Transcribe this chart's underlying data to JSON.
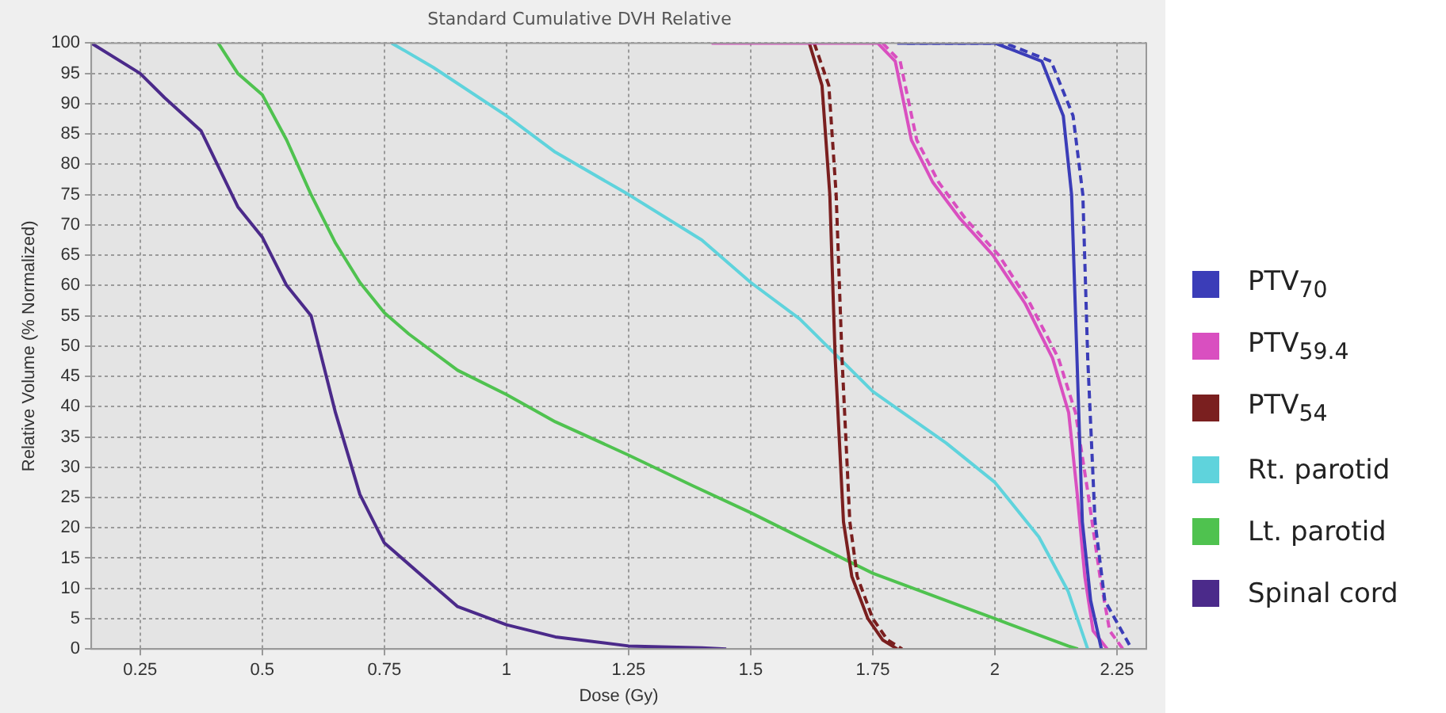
{
  "chart_data": {
    "type": "line",
    "title": "Standard Cumulative DVH Relative",
    "xlabel": "Dose (Gy)",
    "ylabel": "Relative Volume (% Normalized)",
    "xlim": [
      0.15,
      2.31
    ],
    "xticks": [
      0.25,
      0.5,
      0.75,
      1,
      1.25,
      1.5,
      1.75,
      2,
      2.25
    ],
    "ylim": [
      0,
      100
    ],
    "yticks": [
      0,
      5,
      10,
      15,
      20,
      25,
      30,
      35,
      40,
      45,
      50,
      55,
      60,
      65,
      70,
      75,
      80,
      85,
      90,
      95,
      100
    ],
    "grid": true,
    "legend": "right",
    "marker": "none",
    "line_style": "solid",
    "series": [
      {
        "name": "PTV$_{70}$",
        "color": "#3b3db8",
        "x": [
          1.8,
          2.0,
          2.096,
          2.14,
          2.157,
          2.168,
          2.179,
          2.196,
          2.218
        ],
        "values": [
          100,
          100,
          97,
          88,
          75,
          48,
          21,
          8,
          0
        ]
      },
      {
        "color": "#3b3db8",
        "line_style": "dashed",
        "x": [
          1.82,
          2.02,
          2.115,
          2.16,
          2.18,
          2.19,
          2.205,
          2.225,
          2.28
        ],
        "values": [
          100,
          100,
          97,
          88,
          75,
          48,
          21,
          8,
          0
        ]
      },
      {
        "name": "PTV$_{59.4}$",
        "color": "#d94fc0",
        "x": [
          1.42,
          1.76,
          1.796,
          1.829,
          1.873,
          1.929,
          1.996,
          2.062,
          2.118,
          2.151,
          2.168,
          2.184,
          2.201,
          2.23
        ],
        "values": [
          100,
          100,
          97,
          84,
          77,
          71,
          65,
          57,
          48,
          39,
          26,
          12,
          3,
          0
        ]
      },
      {
        "color": "#d94fc0",
        "line_style": "dashed",
        "x": [
          1.77,
          1.806,
          1.84,
          1.885,
          1.94,
          2.008,
          2.072,
          2.13,
          2.165,
          2.19,
          2.215,
          2.235,
          2.262
        ],
        "values": [
          100,
          97,
          84,
          77,
          71,
          65,
          57,
          48,
          39,
          26,
          12,
          3,
          0
        ]
      },
      {
        "name": "PTV$_{54}$",
        "color": "#7a1f1f",
        "x": [
          1.62,
          1.646,
          1.662,
          1.673,
          1.69,
          1.707,
          1.74,
          1.77,
          1.8
        ],
        "values": [
          100,
          93,
          75,
          48,
          21,
          12,
          5,
          1.5,
          0
        ]
      },
      {
        "color": "#7a1f1f",
        "line_style": "dashed",
        "x": [
          1.63,
          1.66,
          1.675,
          1.687,
          1.703,
          1.718,
          1.75,
          1.78,
          1.81
        ],
        "values": [
          100,
          93,
          75,
          48,
          21,
          12,
          5,
          1.5,
          0
        ]
      },
      {
        "name": "Rt. parotid",
        "color": "#5fd3dc",
        "x": [
          0.765,
          0.85,
          1.0,
          1.1,
          1.25,
          1.4,
          1.5,
          1.6,
          1.75,
          1.9,
          2.0,
          2.09,
          2.15,
          2.19
        ],
        "values": [
          100,
          96,
          88,
          82,
          75,
          67.5,
          60.5,
          54.5,
          42.5,
          34,
          27.5,
          18.5,
          9.5,
          0
        ]
      },
      {
        "name": "Lt. parotid",
        "color": "#4fc24f",
        "x": [
          0.41,
          0.45,
          0.5,
          0.55,
          0.6,
          0.65,
          0.7,
          0.75,
          0.8,
          0.9,
          1.0,
          1.1,
          1.25,
          1.38,
          1.5,
          1.75,
          2.0,
          2.15,
          2.17
        ],
        "values": [
          100,
          95,
          91.5,
          84,
          75,
          67,
          60.5,
          55.5,
          52,
          46,
          42,
          37.5,
          32,
          27,
          22.5,
          12.5,
          5,
          0.5,
          0
        ]
      },
      {
        "name": "Spinal cord",
        "color": "#4b2a8a",
        "x": [
          0.15,
          0.25,
          0.3,
          0.375,
          0.45,
          0.5,
          0.55,
          0.6,
          0.65,
          0.7,
          0.75,
          0.85,
          0.9,
          1.0,
          1.1,
          1.25,
          1.4,
          1.45
        ],
        "values": [
          100,
          95,
          91,
          85.5,
          73,
          68,
          60,
          55,
          39,
          25.5,
          17.5,
          10.5,
          7,
          4,
          2,
          0.5,
          0.2,
          0
        ]
      }
    ]
  }
}
